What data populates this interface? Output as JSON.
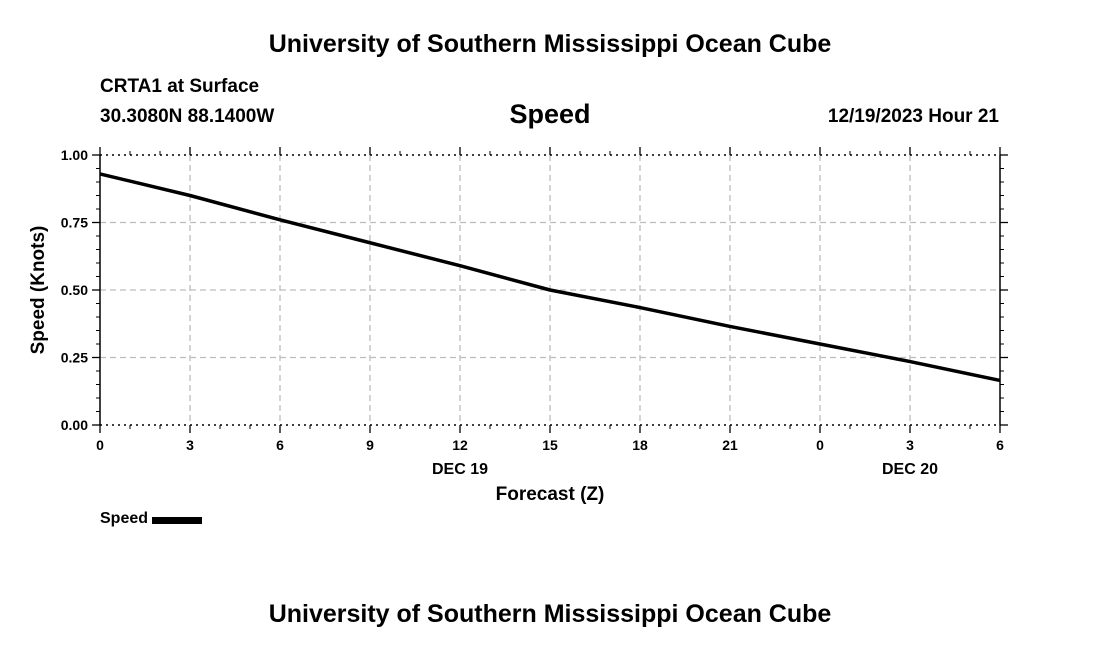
{
  "header": {
    "title": "University of Southern Mississippi Ocean Cube",
    "station": "CRTA1 at Surface",
    "coords": "30.3080N  88.1400W",
    "variable": "Speed",
    "timestamp": "12/19/2023 Hour 21"
  },
  "footer": {
    "title": "University of Southern Mississippi Ocean Cube"
  },
  "legend": {
    "label": "Speed",
    "color": "#000000"
  },
  "chart_data": {
    "type": "line",
    "title": "Speed",
    "xlabel": "Forecast (Z)",
    "ylabel": "Speed (Knots)",
    "x_tick_labels": [
      "0",
      "3",
      "6",
      "9",
      "12",
      "15",
      "18",
      "21",
      "0",
      "3",
      "6"
    ],
    "x_date_labels": [
      {
        "label": "DEC 19",
        "at_tick": 4
      },
      {
        "label": "DEC 20",
        "at_tick": 9
      }
    ],
    "y_ticks": [
      0.0,
      0.25,
      0.5,
      0.75,
      1.0
    ],
    "y_tick_labels": [
      "0.00",
      "0.25",
      "0.50",
      "0.75",
      "1.00"
    ],
    "ylim": [
      0,
      1
    ],
    "grid": true,
    "legend_position": "bottom-left",
    "series": [
      {
        "name": "Speed",
        "color": "#000000",
        "x_tick_index": [
          0,
          1,
          2,
          3,
          4,
          5,
          6,
          7,
          8,
          9,
          10
        ],
        "values": [
          0.93,
          0.85,
          0.76,
          0.675,
          0.59,
          0.5,
          0.435,
          0.365,
          0.3,
          0.235,
          0.165
        ]
      }
    ]
  }
}
